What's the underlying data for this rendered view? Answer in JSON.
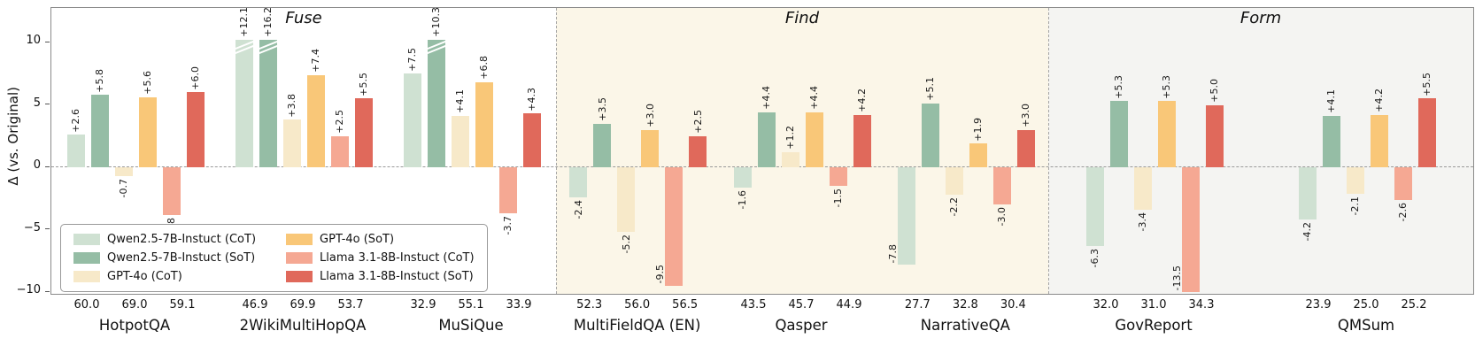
{
  "chart_data": {
    "type": "bar",
    "ylabel": "Δ (vs. Original)",
    "ylim": [
      -10,
      10
    ],
    "yticks": [
      {
        "value": 10,
        "label": "10"
      },
      {
        "value": 5,
        "label": "5"
      },
      {
        "value": 0,
        "label": "0"
      },
      {
        "value": -5,
        "label": "−5"
      },
      {
        "value": -10,
        "label": "−10"
      }
    ],
    "zero_line": true,
    "sections": [
      {
        "label": "Fuse",
        "bg": "#ffffff",
        "groups": [
          0,
          1,
          2
        ]
      },
      {
        "label": "Find",
        "bg": "#fbf6e8",
        "groups": [
          3,
          4,
          5
        ]
      },
      {
        "label": "Form",
        "bg": "#f4f4f2",
        "groups": [
          6,
          7
        ]
      }
    ],
    "series": [
      {
        "name": "Qwen2.5-7B-Instuct (CoT)",
        "color": "#cfe1d2"
      },
      {
        "name": "Qwen2.5-7B-Instuct (SoT)",
        "color": "#95bda5"
      },
      {
        "name": "GPT-4o (CoT)",
        "color": "#f7e9c9"
      },
      {
        "name": "GPT-4o (SoT)",
        "color": "#f9c778"
      },
      {
        "name": "Llama 3.1-8B-Instuct (CoT)",
        "color": "#f5a893"
      },
      {
        "name": "Llama 3.1-8B-Instuct (SoT)",
        "color": "#e0695b"
      }
    ],
    "groups": [
      {
        "name": "HotpotQA",
        "deltas": [
          2.6,
          5.8,
          -0.7,
          5.6,
          -3.8,
          6.0
        ],
        "delta_labels": [
          "+2.6",
          "+5.8",
          "-0.7",
          "+5.6",
          "-3.8",
          "+6.0"
        ],
        "originals": [
          "60.0",
          "69.0",
          "59.1"
        ]
      },
      {
        "name": "2WikiMultiHopQA",
        "deltas": [
          12.1,
          16.2,
          3.8,
          7.4,
          2.5,
          5.5
        ],
        "delta_labels": [
          "+12.1",
          "+16.2",
          "+3.8",
          "+7.4",
          "+2.5",
          "+5.5"
        ],
        "originals": [
          "46.9",
          "69.9",
          "53.7"
        ]
      },
      {
        "name": "MuSiQue",
        "deltas": [
          7.5,
          10.3,
          4.1,
          6.8,
          -3.7,
          4.3
        ],
        "delta_labels": [
          "+7.5",
          "+10.3",
          "+4.1",
          "+6.8",
          "-3.7",
          "+4.3"
        ],
        "originals": [
          "32.9",
          "55.1",
          "33.9"
        ]
      },
      {
        "name": "MultiFieldQA (EN)",
        "deltas": [
          -2.4,
          3.5,
          -5.2,
          3.0,
          -9.5,
          2.5
        ],
        "delta_labels": [
          "-2.4",
          "+3.5",
          "-5.2",
          "+3.0",
          "-9.5",
          "+2.5"
        ],
        "originals": [
          "52.3",
          "56.0",
          "56.5"
        ]
      },
      {
        "name": "Qasper",
        "deltas": [
          -1.6,
          4.4,
          1.2,
          4.4,
          -1.5,
          4.2
        ],
        "delta_labels": [
          "-1.6",
          "+4.4",
          "+1.2",
          "+4.4",
          "-1.5",
          "+4.2"
        ],
        "originals": [
          "43.5",
          "45.7",
          "44.9"
        ]
      },
      {
        "name": "NarrativeQA",
        "deltas": [
          -7.8,
          5.1,
          -2.2,
          1.9,
          -3.0,
          3.0
        ],
        "delta_labels": [
          "-7.8",
          "+5.1",
          "-2.2",
          "+1.9",
          "-3.0",
          "+3.0"
        ],
        "originals": [
          "27.7",
          "32.8",
          "30.4"
        ]
      },
      {
        "name": "GovReport",
        "deltas": [
          -6.3,
          5.3,
          -3.4,
          5.3,
          -13.5,
          5.0
        ],
        "delta_labels": [
          "-6.3",
          "+5.3",
          "-3.4",
          "+5.3",
          "-13.5",
          "+5.0"
        ],
        "originals": [
          "32.0",
          "31.0",
          "34.3"
        ]
      },
      {
        "name": "QMSum",
        "deltas": [
          -4.2,
          4.1,
          -2.1,
          4.2,
          -2.6,
          5.5
        ],
        "delta_labels": [
          "-4.2",
          "+4.1",
          "-2.1",
          "+4.2",
          "-2.6",
          "+5.5"
        ],
        "originals": [
          "23.9",
          "25.0",
          "25.2"
        ]
      }
    ],
    "legend_columns": [
      [
        0,
        1,
        2
      ],
      [
        3,
        4,
        5
      ]
    ]
  }
}
